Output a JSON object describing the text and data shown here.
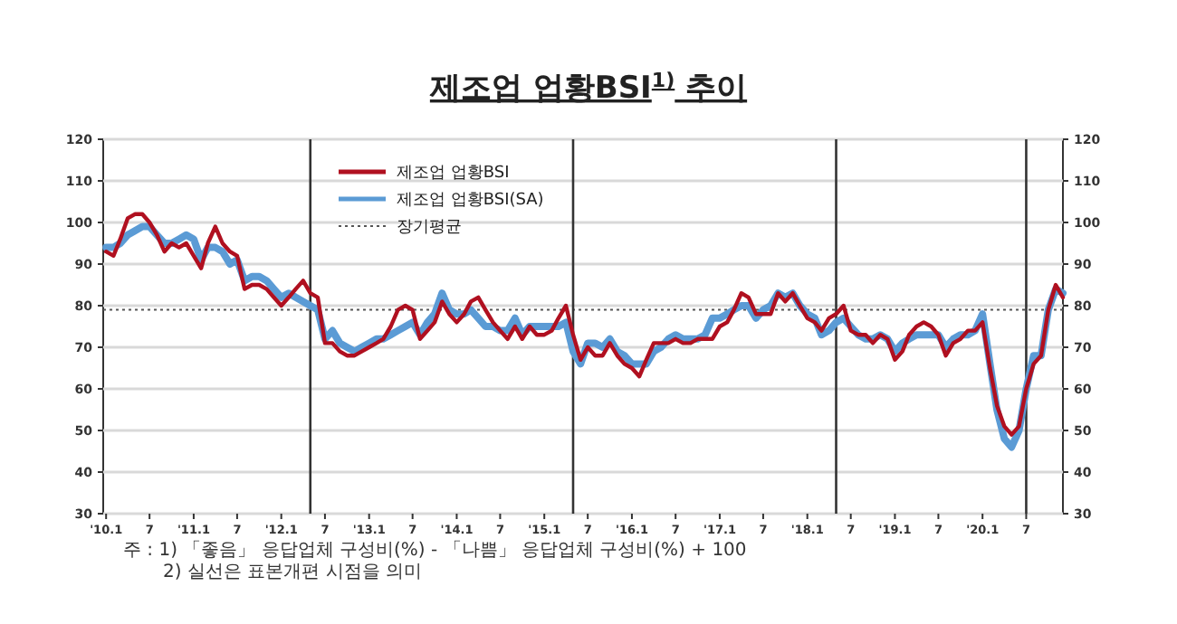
{
  "chart_data": {
    "type": "line",
    "title": "제조업 업황BSI$^{1)}$ 추이",
    "x": [
      "2010-01",
      "2010-02",
      "2010-03",
      "2010-04",
      "2010-05",
      "2010-06",
      "2010-07",
      "2010-08",
      "2010-09",
      "2010-10",
      "2010-11",
      "2010-12",
      "2011-01",
      "2011-02",
      "2011-03",
      "2011-04",
      "2011-05",
      "2011-06",
      "2011-07",
      "2011-08",
      "2011-09",
      "2011-10",
      "2011-11",
      "2011-12",
      "2012-01",
      "2012-02",
      "2012-03",
      "2012-04",
      "2012-05",
      "2012-06",
      "2012-07",
      "2012-08",
      "2012-09",
      "2012-10",
      "2012-11",
      "2012-12",
      "2013-01",
      "2013-02",
      "2013-03",
      "2013-04",
      "2013-05",
      "2013-06",
      "2013-07",
      "2013-08",
      "2013-09",
      "2013-10",
      "2013-11",
      "2013-12",
      "2014-01",
      "2014-02",
      "2014-03",
      "2014-04",
      "2014-05",
      "2014-06",
      "2014-07",
      "2014-08",
      "2014-09",
      "2014-10",
      "2014-11",
      "2014-12",
      "2015-01",
      "2015-02",
      "2015-03",
      "2015-04",
      "2015-05",
      "2015-06",
      "2015-07",
      "2015-08",
      "2015-09",
      "2015-10",
      "2015-11",
      "2015-12",
      "2016-01",
      "2016-02",
      "2016-03",
      "2016-04",
      "2016-05",
      "2016-06",
      "2016-07",
      "2016-08",
      "2016-09",
      "2016-10",
      "2016-11",
      "2016-12",
      "2017-01",
      "2017-02",
      "2017-03",
      "2017-04",
      "2017-05",
      "2017-06",
      "2017-07",
      "2017-08",
      "2017-09",
      "2017-10",
      "2017-11",
      "2017-12",
      "2018-01",
      "2018-02",
      "2018-03",
      "2018-04",
      "2018-05",
      "2018-06",
      "2018-07",
      "2018-08",
      "2018-09",
      "2018-10",
      "2018-11",
      "2018-12",
      "2019-01",
      "2019-02",
      "2019-03",
      "2019-04",
      "2019-05",
      "2019-06",
      "2019-07",
      "2019-08",
      "2019-09",
      "2019-10",
      "2019-11",
      "2019-12",
      "2020-01",
      "2020-02",
      "2020-03",
      "2020-04",
      "2020-05",
      "2020-06",
      "2020-07",
      "2020-08",
      "2020-09",
      "2020-10",
      "2020-11",
      "2020-12"
    ],
    "series": [
      {
        "name": "제조업 업황BSI(SA)",
        "color": "#5b9bd5",
        "values": [
          94,
          94,
          95,
          97,
          98,
          99,
          99,
          97,
          95,
          95,
          96,
          97,
          96,
          91,
          94,
          94,
          93,
          90,
          91,
          86,
          87,
          87,
          86,
          84,
          82,
          83,
          82,
          81,
          80,
          79,
          72,
          74,
          71,
          70,
          69,
          70,
          71,
          72,
          72,
          73,
          74,
          75,
          76,
          73,
          76,
          78,
          83,
          79,
          78,
          78,
          79,
          77,
          75,
          75,
          74,
          74,
          77,
          73,
          75,
          75,
          75,
          75,
          75,
          76,
          69,
          66,
          71,
          71,
          70,
          72,
          69,
          68,
          66,
          66,
          66,
          69,
          70,
          72,
          73,
          72,
          72,
          72,
          73,
          77,
          77,
          78,
          79,
          80,
          80,
          77,
          79,
          80,
          83,
          82,
          83,
          80,
          78,
          77,
          73,
          74,
          76,
          77,
          75,
          73,
          72,
          72,
          73,
          72,
          69,
          71,
          72,
          73,
          73,
          73,
          73,
          70,
          72,
          73,
          73,
          74,
          78,
          66,
          55,
          48,
          46,
          50,
          60,
          68,
          68,
          79,
          84,
          83
        ]
      },
      {
        "name": "제조업 업황BSI",
        "color": "#b01020",
        "values": [
          93,
          92,
          96,
          101,
          102,
          102,
          100,
          97,
          93,
          95,
          94,
          95,
          92,
          89,
          95,
          99,
          95,
          93,
          92,
          84,
          85,
          85,
          84,
          82,
          80,
          82,
          84,
          86,
          83,
          82,
          71,
          71,
          69,
          68,
          68,
          69,
          70,
          71,
          72,
          75,
          79,
          80,
          79,
          72,
          74,
          76,
          81,
          78,
          76,
          78,
          81,
          82,
          79,
          76,
          74,
          72,
          75,
          72,
          75,
          73,
          73,
          74,
          77,
          80,
          73,
          67,
          70,
          68,
          68,
          71,
          68,
          66,
          65,
          63,
          67,
          71,
          71,
          71,
          72,
          71,
          71,
          72,
          72,
          72,
          75,
          76,
          79,
          83,
          82,
          78,
          78,
          78,
          83,
          81,
          83,
          80,
          77,
          76,
          74,
          77,
          78,
          80,
          74,
          73,
          73,
          71,
          73,
          72,
          67,
          69,
          73,
          75,
          76,
          75,
          73,
          68,
          71,
          72,
          74,
          74,
          76,
          65,
          56,
          51,
          49,
          51,
          60,
          66,
          68,
          79,
          85,
          82
        ]
      }
    ],
    "xlim": [
      "2009-12-20",
      "2020-12"
    ],
    "xticks": [
      {
        "value": "2010-01",
        "label": "'10.1"
      },
      {
        "value": "2010-07",
        "label": "7"
      },
      {
        "value": "2011-01",
        "label": "'11.1"
      },
      {
        "value": "2011-07",
        "label": "7"
      },
      {
        "value": "2012-01",
        "label": "'12.1"
      },
      {
        "value": "2012-07",
        "label": "7"
      },
      {
        "value": "2013-01",
        "label": "'13.1"
      },
      {
        "value": "2013-07",
        "label": "7"
      },
      {
        "value": "2014-01",
        "label": "'14.1"
      },
      {
        "value": "2014-07",
        "label": "7"
      },
      {
        "value": "2015-01",
        "label": "'15.1"
      },
      {
        "value": "2015-07",
        "label": "7"
      },
      {
        "value": "2016-01",
        "label": "'16.1"
      },
      {
        "value": "2016-07",
        "label": "7"
      },
      {
        "value": "2017-01",
        "label": "'17.1"
      },
      {
        "value": "2017-07",
        "label": "7"
      },
      {
        "value": "2018-01",
        "label": "'18.1"
      },
      {
        "value": "2018-07",
        "label": "7"
      },
      {
        "value": "2019-01",
        "label": "'19.1"
      },
      {
        "value": "2019-07",
        "label": "7"
      },
      {
        "value": "2020-01",
        "label": "'20.1"
      },
      {
        "value": "2020-07",
        "label": "7"
      }
    ],
    "ylim": [
      30,
      120
    ],
    "yticks": [
      30,
      40,
      50,
      60,
      70,
      80,
      90,
      100,
      110,
      120
    ],
    "y2lim": [
      30,
      120
    ],
    "y2ticks": [
      30,
      40,
      50,
      60,
      70,
      80,
      90,
      100,
      110,
      120
    ],
    "grid": "y",
    "legend": "top left",
    "marker": "none",
    "line_style": "solid",
    "ref_lines": [
      {
        "axis": "y",
        "value": 79,
        "label": "장기평균",
        "color": "#555555",
        "line_style": "dotted"
      },
      {
        "axis": "x",
        "value": "2012-05",
        "color": "#333333"
      },
      {
        "axis": "x",
        "value": "2015-05",
        "color": "#333333"
      },
      {
        "axis": "x",
        "value": "2018-05",
        "color": "#333333"
      },
      {
        "axis": "x",
        "value": "2020-07",
        "color": "#333333"
      }
    ],
    "annotations": [
      "주 : 1) 「좋음」 응답업체 구성비(%) - 「나쁨」 응답업체 구성비(%) + 100",
      "2) 실선은 표본개편 시점을 의미"
    ]
  }
}
